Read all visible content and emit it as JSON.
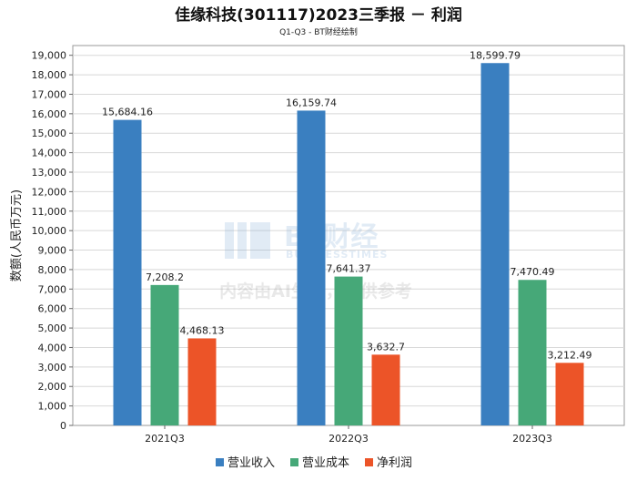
{
  "chart_data": {
    "type": "bar",
    "title": "佳缘科技(301117)2023三季报 － 利润",
    "subtitle": "Q1-Q3 - BT财经绘制",
    "xlabel": "",
    "ylabel": "数额(人民币万元)",
    "categories": [
      "2021Q3",
      "2022Q3",
      "2023Q3"
    ],
    "ylim": [
      0,
      19500
    ],
    "yticks": [
      0,
      1000,
      2000,
      3000,
      4000,
      5000,
      6000,
      7000,
      8000,
      9000,
      10000,
      11000,
      12000,
      13000,
      14000,
      15000,
      16000,
      17000,
      18000,
      19000
    ],
    "ytick_labels": [
      "0",
      "1,000",
      "2,000",
      "3,000",
      "4,000",
      "5,000",
      "6,000",
      "7,000",
      "8,000",
      "9,000",
      "10,000",
      "11,000",
      "12,000",
      "13,000",
      "14,000",
      "15,000",
      "16,000",
      "17,000",
      "18,000",
      "19,000"
    ],
    "grid": true,
    "legend_position": "bottom",
    "series": [
      {
        "name": "营业收入",
        "color": "#3a7fc0",
        "values": [
          15684.16,
          16159.74,
          18599.79
        ],
        "labels": [
          "15,684.16",
          "16,159.74",
          "18,599.79"
        ]
      },
      {
        "name": "营业成本",
        "color": "#46a878",
        "values": [
          7208.2,
          7641.37,
          7470.49
        ],
        "labels": [
          "7,208.2",
          "7,641.37",
          "7,470.49"
        ]
      },
      {
        "name": "净利润",
        "color": "#ec5428",
        "values": [
          4468.13,
          3632.7,
          3212.49
        ],
        "labels": [
          "4,468.13",
          "3,632.7",
          "3,212.49"
        ]
      }
    ]
  },
  "watermark": {
    "brand": "BT财经",
    "brand_en": "BUSINESSTIMES",
    "notice": "内容由AI生成，仅供参考"
  }
}
